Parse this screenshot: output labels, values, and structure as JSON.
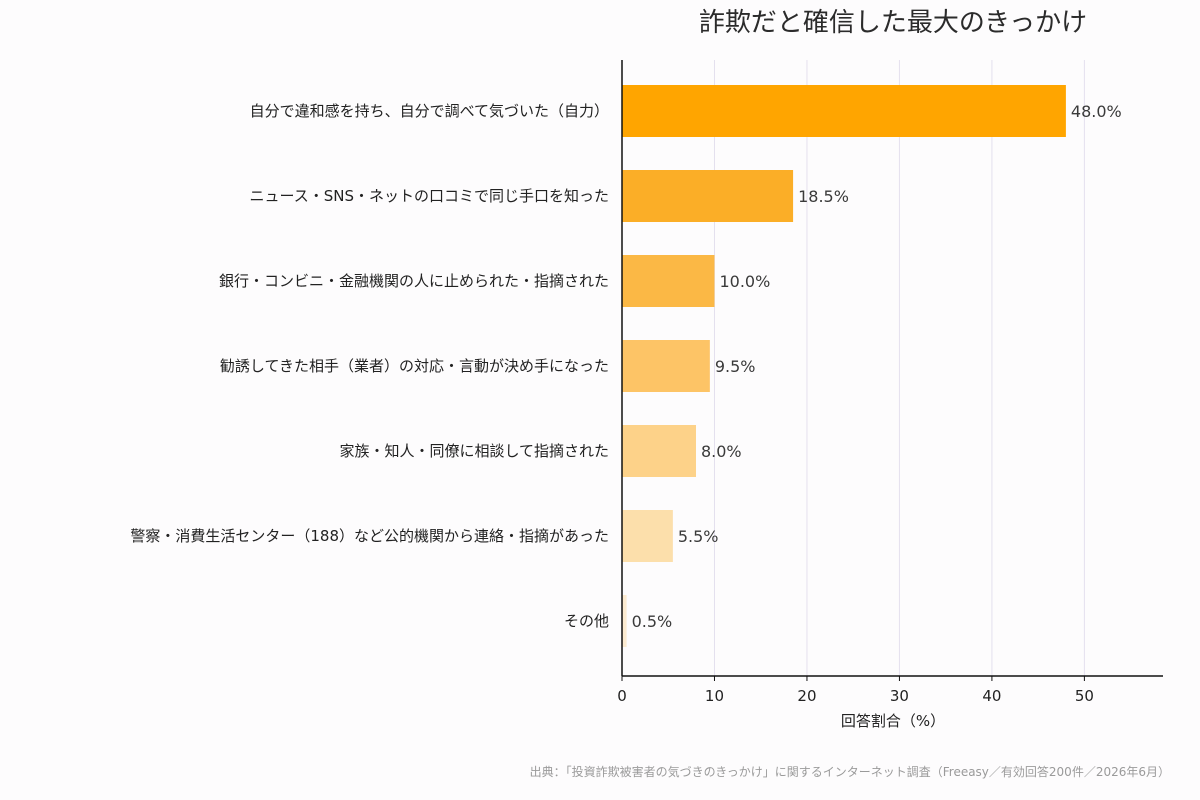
{
  "chart_data": {
    "type": "bar",
    "orientation": "horizontal",
    "title": "詐欺だと確信した最大のきっかけ",
    "categories": [
      "自分で違和感を持ち、自分で調べて気づいた（自力）",
      "ニュース・SNS・ネットの口コミで同じ手口を知った",
      "銀行・コンビニ・金融機関の人に止められた・指摘された",
      "勧誘してきた相手（業者）の対応・言動が決め手になった",
      "家族・知人・同僚に相談して指摘された",
      "警察・消費生活センター（188）など公的機関から連絡・指摘があった",
      "その他"
    ],
    "values": [
      48.0,
      18.5,
      10.0,
      9.5,
      8.0,
      5.5,
      0.5
    ],
    "value_labels": [
      "48.0%",
      "18.5%",
      "10.0%",
      "9.5%",
      "8.0%",
      "5.5%",
      "0.5%"
    ],
    "bar_colors": [
      "#FFA500",
      "#FBAE27",
      "#FBB845",
      "#FDC466",
      "#FDD289",
      "#FCDFAB",
      "#FCEBD1"
    ],
    "xlabel": "回答割合（%）",
    "ylabel": "",
    "xlim": [
      0,
      58.5
    ],
    "xticks": [
      0,
      10,
      20,
      30,
      40,
      50
    ],
    "grid": "vertical",
    "grid_color": "#e4e0ee"
  },
  "source_note": "出典：「投資詐欺被害者の気づきのきっかけ」に関するインターネット調査（Freeasy／有効回答200件／2026年6月）"
}
